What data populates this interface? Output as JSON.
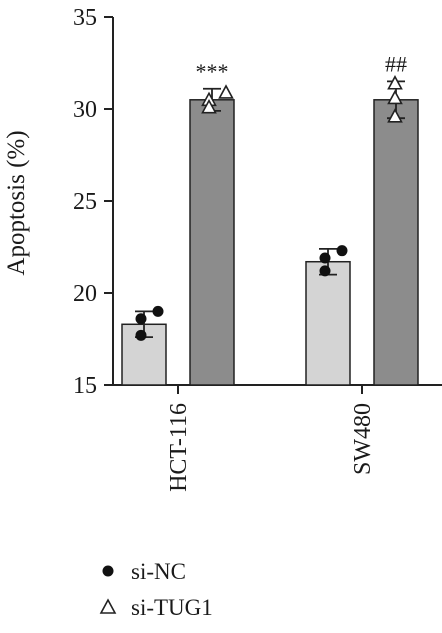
{
  "chart_data": {
    "type": "bar",
    "ylabel": "Apoptosis (%)",
    "ylim": [
      15,
      35
    ],
    "yticks": [
      15,
      20,
      25,
      30,
      35
    ],
    "categories": [
      "HCT-116",
      "SW480"
    ],
    "series": [
      {
        "name": "si-NC",
        "values": [
          18.3,
          21.7
        ],
        "errors": [
          0.7,
          0.7
        ],
        "points": [
          [
            19.0,
            18.6,
            17.7
          ],
          [
            22.3,
            21.9,
            21.2
          ]
        ],
        "color": "#d4d4d4",
        "marker": "circle"
      },
      {
        "name": "si-TUG1",
        "values": [
          30.5,
          30.5
        ],
        "errors": [
          0.6,
          1.0
        ],
        "points": [
          [
            30.9,
            30.5,
            30.1
          ],
          [
            31.4,
            30.6,
            29.6
          ]
        ],
        "color": "#8c8c8c",
        "marker": "triangle"
      }
    ],
    "annotations": [
      "***",
      "##"
    ],
    "legend_position": "bottom-left"
  }
}
